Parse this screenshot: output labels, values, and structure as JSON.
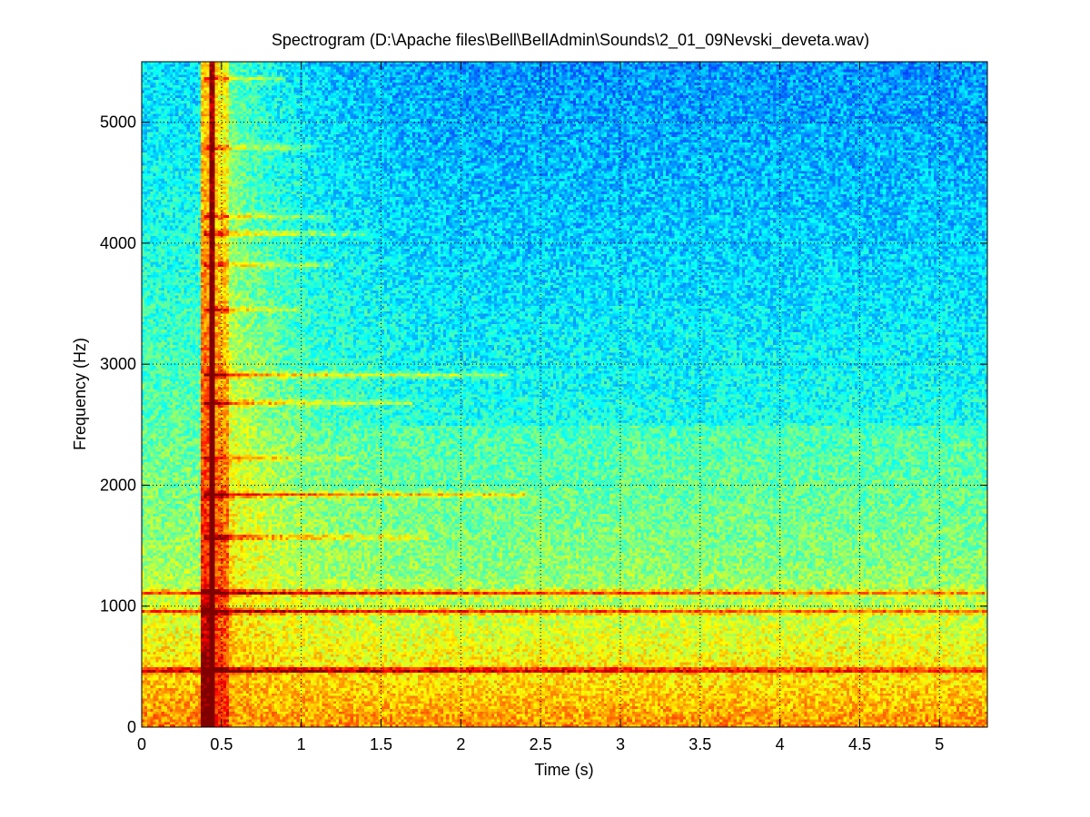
{
  "chart_data": {
    "type": "heatmap",
    "title": "Spectrogram (D:\\Apache files\\Bell\\BellAdmin\\Sounds\\2_01_09Nevski_deveta.wav)",
    "xlabel": "Time (s)",
    "ylabel": "Frequency (Hz)",
    "xlim": [
      0,
      5.3
    ],
    "ylim": [
      0,
      5500
    ],
    "x_ticks": [
      0,
      0.5,
      1,
      1.5,
      2,
      2.5,
      3,
      3.5,
      4,
      4.5,
      5
    ],
    "x_tick_labels": [
      "0",
      "0.5",
      "1",
      "1.5",
      "2",
      "2.5",
      "3",
      "3.5",
      "4",
      "4.5",
      "5"
    ],
    "y_ticks": [
      0,
      1000,
      2000,
      3000,
      4000,
      5000
    ],
    "y_tick_labels": [
      "0",
      "1000",
      "2000",
      "3000",
      "4000",
      "5000"
    ],
    "grid": true,
    "colormap": "jet",
    "onset_time": 0.42,
    "partials": [
      {
        "freq": 470,
        "end_time": 5.3,
        "strength": 1.0
      },
      {
        "freq": 955,
        "end_time": 5.3,
        "strength": 0.9
      },
      {
        "freq": 1110,
        "end_time": 5.3,
        "strength": 0.95
      },
      {
        "freq": 1570,
        "end_time": 1.8,
        "strength": 0.55
      },
      {
        "freq": 1920,
        "end_time": 2.4,
        "strength": 0.8
      },
      {
        "freq": 2220,
        "end_time": 1.3,
        "strength": 0.4
      },
      {
        "freq": 2680,
        "end_time": 1.7,
        "strength": 0.6
      },
      {
        "freq": 2910,
        "end_time": 2.3,
        "strength": 0.7
      },
      {
        "freq": 3450,
        "end_time": 1.0,
        "strength": 0.45
      },
      {
        "freq": 3820,
        "end_time": 1.2,
        "strength": 0.5
      },
      {
        "freq": 4080,
        "end_time": 1.4,
        "strength": 0.6
      },
      {
        "freq": 4220,
        "end_time": 1.2,
        "strength": 0.45
      },
      {
        "freq": 4790,
        "end_time": 1.1,
        "strength": 0.5
      },
      {
        "freq": 5360,
        "end_time": 0.9,
        "strength": 0.5
      }
    ]
  }
}
